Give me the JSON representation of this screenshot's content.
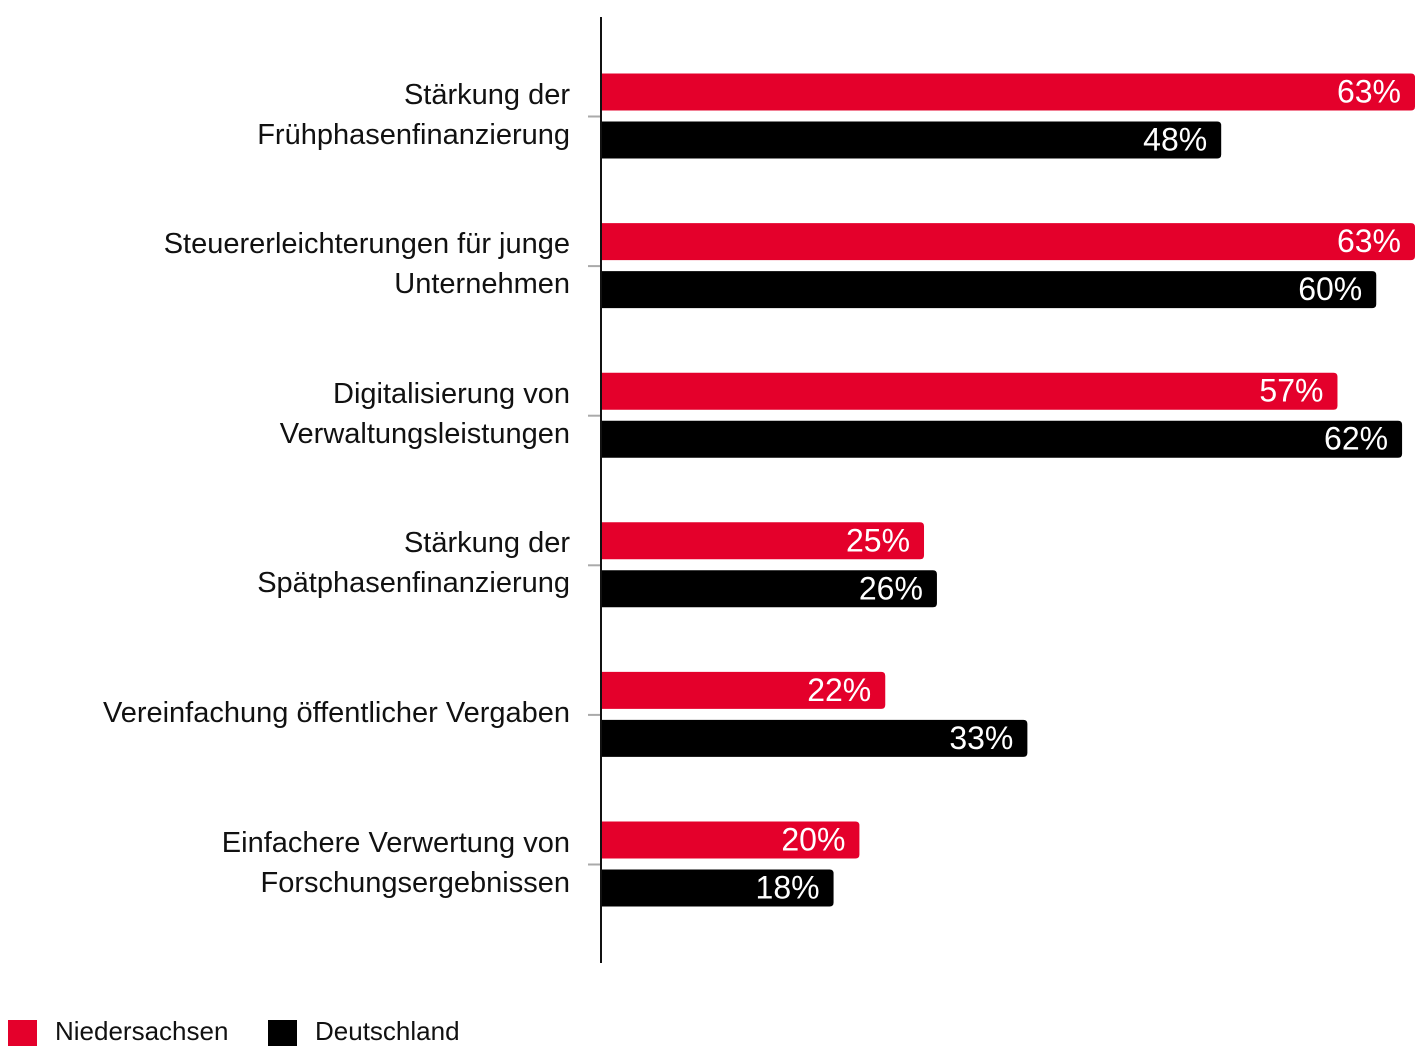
{
  "chart_data": {
    "type": "bar",
    "orientation": "horizontal",
    "categories": [
      "Stärkung der\nFrühphasenfinanzierung",
      "Steuererleichterungen für junge\nUnternehmen",
      "Digitalisierung von\nVerwaltungsleistungen",
      "Stärkung der\nSpätphasenfinanzierung",
      "Vereinfachung öffentlicher Vergaben",
      "Einfachere Verwertung von\nForschungsergebnissen"
    ],
    "series": [
      {
        "name": "Niedersachsen",
        "color": "#e4002b",
        "values": [
          63,
          63,
          57,
          25,
          22,
          20
        ],
        "value_labels": [
          "63%",
          "63%",
          "57%",
          "25%",
          "22%",
          "20%"
        ]
      },
      {
        "name": "Deutschland",
        "color": "#000000",
        "values": [
          48,
          60,
          62,
          26,
          33,
          18
        ],
        "value_labels": [
          "48%",
          "60%",
          "62%",
          "26%",
          "33%",
          "18%"
        ]
      }
    ],
    "xlim": [
      0,
      63
    ],
    "legend": "bottom-left"
  }
}
